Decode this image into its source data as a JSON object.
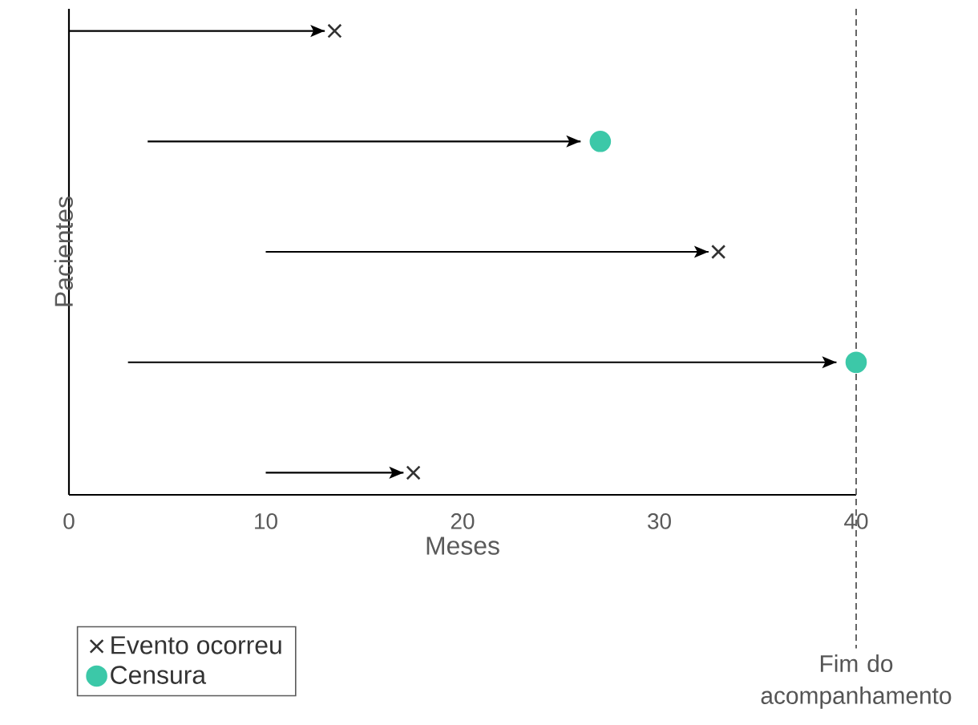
{
  "chart_data": {
    "type": "bar",
    "orientation": "horizontal",
    "xlabel": "Meses",
    "ylabel": "Pacientes",
    "categories": [
      null,
      null,
      null,
      null,
      null
    ],
    "xlim": [
      0,
      40
    ],
    "xticks": [
      0,
      10,
      20,
      30,
      40
    ],
    "grid": false,
    "legend": "bottom left",
    "series": [
      {
        "type": "bar",
        "color": "#000000",
        "base": [
          0,
          4,
          10,
          3,
          10
        ],
        "values": [
          13,
          22,
          22.5,
          36,
          7
        ]
      },
      {
        "type": "scatter",
        "name": "Evento ocorreu",
        "color": "#333333",
        "marker": "cross",
        "values": [
          13.5,
          null,
          33,
          null,
          17.5
        ]
      },
      {
        "type": "scatter",
        "name": "Censura",
        "color": "#3cc8a8",
        "marker": "circle",
        "values": [
          null,
          27,
          null,
          40,
          null
        ]
      }
    ],
    "ref_lines": [
      {
        "axis": "x",
        "value": 40,
        "label": "Fim do acompanhamento",
        "line_style": "dashed",
        "color": "#555555"
      }
    ]
  }
}
